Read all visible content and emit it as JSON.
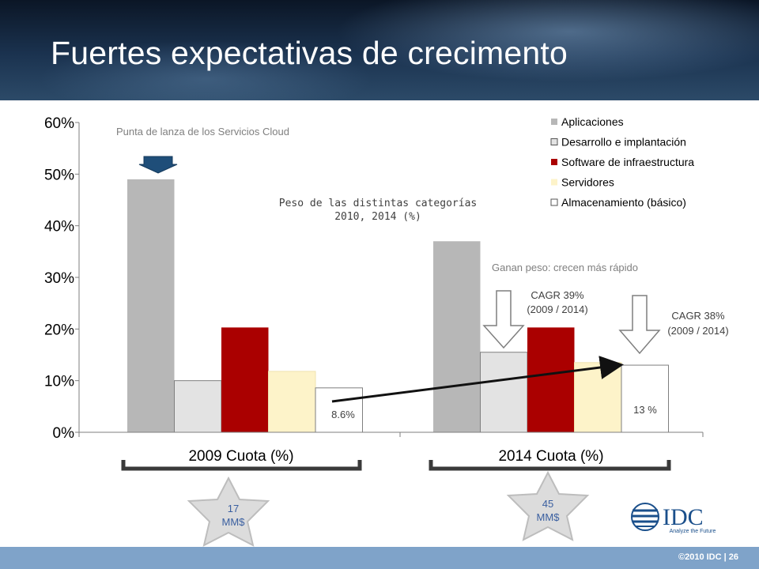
{
  "slide": {
    "title": "Fuertes expectativas de crecimento",
    "copyright": "©2010 IDC | 26"
  },
  "logo": {
    "text": "IDC",
    "tagline": "Analyze the Future"
  },
  "annotations": {
    "spearhead": "Punta de lanza de los Servicios Cloud",
    "inner_title_line1": "Peso de las distintas categorías",
    "inner_title_line2": "2010, 2014 (%)",
    "gain": "Ganan peso: crecen más rápido",
    "cagr1_line1": "CAGR 39%",
    "cagr1_line2": "(2009 / 2014)",
    "cagr2_line1": "CAGR 38%",
    "cagr2_line2": "(2009 / 2014)",
    "label_2009_storage": "8.6%",
    "label_2014_storage": "13 %",
    "star1_line1": "17",
    "star1_line2": "MM$",
    "star2_line1": "45",
    "star2_line2": "MM$"
  },
  "chart_data": {
    "type": "bar",
    "categories": [
      "2009 Cuota (%)",
      "2014 Cuota (%)"
    ],
    "series": [
      {
        "name": "Aplicaciones",
        "values": [
          49,
          37
        ],
        "color": "#b7b7b7"
      },
      {
        "name": "Desarrollo e implantación",
        "values": [
          10,
          15.5
        ],
        "color": "#e3e3e3"
      },
      {
        "name": "Software de infraestructura",
        "values": [
          20.3,
          20.3
        ],
        "color": "#aa0000"
      },
      {
        "name": "Servidores",
        "values": [
          11.8,
          13.5
        ],
        "color": "#fdf3c9"
      },
      {
        "name": "Almacenamiento (básico)",
        "values": [
          8.6,
          13
        ],
        "color": "#ffffff"
      }
    ],
    "ylim": [
      0,
      60
    ],
    "yticks": [
      "0%",
      "10%",
      "20%",
      "30%",
      "40%",
      "50%",
      "60%"
    ],
    "ytick_values": [
      0,
      10,
      20,
      30,
      40,
      50,
      60
    ],
    "grid": false,
    "legend": "top-right"
  }
}
